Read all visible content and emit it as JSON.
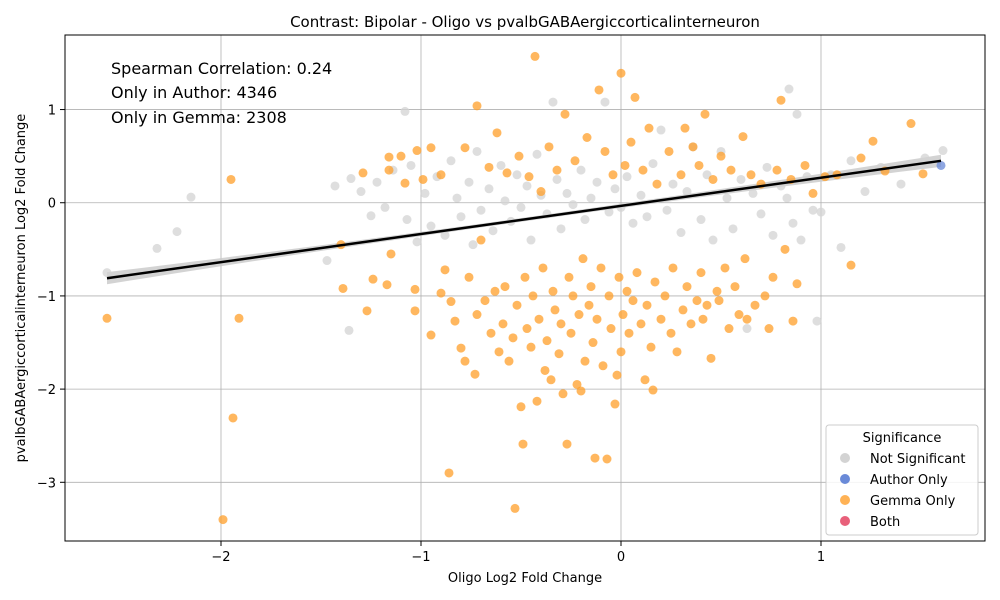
{
  "chart_data": {
    "type": "scatter",
    "title": "Contrast: Bipolar - Oligo vs pvalbGABAergiccorticalinterneuron",
    "xlabel": "Oligo Log2 Fold Change",
    "ylabel": "pvalbGABAergiccorticalinterneuron Log2 Fold Change",
    "xlim": [
      -2.78,
      1.82
    ],
    "ylim": [
      -3.63,
      1.8
    ],
    "xticks": [
      -2,
      -1,
      0,
      1
    ],
    "yticks": [
      -3,
      -2,
      -1,
      0,
      1
    ],
    "xtick_labels": [
      "−2",
      "−1",
      "0",
      "1"
    ],
    "ytick_labels": [
      "−3",
      "−2",
      "−1",
      "0",
      "1"
    ],
    "grid": true,
    "annotations": [
      "Spearman Correlation: 0.24",
      "Only in Author: 4346",
      "Only in Gemma: 2308"
    ],
    "legend": {
      "title": "Significance",
      "placement": "bottom-right",
      "entries": [
        {
          "label": "Not Significant",
          "color": "#d3d3d3"
        },
        {
          "label": "Author Only",
          "color": "#6a8ad8"
        },
        {
          "label": "Gemma Only",
          "color": "#ff9f2a"
        },
        {
          "label": "Both",
          "color": "#e8607a"
        }
      ]
    },
    "regression": {
      "x": [
        -2.57,
        1.6
      ],
      "y": [
        -0.81,
        0.45
      ],
      "color": "#000000"
    },
    "series": [
      {
        "name": "Not Significant",
        "color": "#d3d3d3",
        "points": [
          [
            -2.57,
            -0.75
          ],
          [
            -2.32,
            -0.49
          ],
          [
            -2.22,
            -0.31
          ],
          [
            -2.15,
            0.06
          ],
          [
            -1.47,
            -0.62
          ],
          [
            -1.43,
            0.18
          ],
          [
            -1.36,
            -1.37
          ],
          [
            -1.35,
            0.26
          ],
          [
            -1.3,
            0.12
          ],
          [
            -1.25,
            -0.14
          ],
          [
            -1.22,
            0.22
          ],
          [
            -1.18,
            -0.05
          ],
          [
            -1.14,
            0.35
          ],
          [
            -1.08,
            0.98
          ],
          [
            -1.07,
            -0.18
          ],
          [
            -1.05,
            0.4
          ],
          [
            -1.02,
            -0.42
          ],
          [
            -0.98,
            0.1
          ],
          [
            -0.95,
            -0.25
          ],
          [
            -0.92,
            0.28
          ],
          [
            -0.88,
            -0.35
          ],
          [
            -0.85,
            0.45
          ],
          [
            -0.82,
            0.05
          ],
          [
            -0.8,
            -0.15
          ],
          [
            -0.76,
            0.22
          ],
          [
            -0.74,
            -0.45
          ],
          [
            -0.72,
            0.55
          ],
          [
            -0.7,
            -0.08
          ],
          [
            -0.66,
            0.15
          ],
          [
            -0.64,
            -0.3
          ],
          [
            -0.6,
            0.4
          ],
          [
            -0.58,
            0.02
          ],
          [
            -0.55,
            -0.2
          ],
          [
            -0.52,
            0.3
          ],
          [
            -0.5,
            -0.05
          ],
          [
            -0.47,
            0.18
          ],
          [
            -0.45,
            -0.4
          ],
          [
            -0.42,
            0.52
          ],
          [
            -0.4,
            0.08
          ],
          [
            -0.37,
            -0.12
          ],
          [
            -0.34,
            1.08
          ],
          [
            -0.32,
            0.25
          ],
          [
            -0.3,
            -0.28
          ],
          [
            -0.27,
            0.1
          ],
          [
            -0.24,
            -0.02
          ],
          [
            -0.2,
            0.35
          ],
          [
            -0.18,
            -0.18
          ],
          [
            -0.15,
            0.05
          ],
          [
            -0.12,
            0.22
          ],
          [
            -0.08,
            1.08
          ],
          [
            -0.06,
            -0.1
          ],
          [
            -0.03,
            0.15
          ],
          [
            0.0,
            -0.05
          ],
          [
            0.03,
            0.28
          ],
          [
            0.06,
            -0.22
          ],
          [
            0.1,
            0.08
          ],
          [
            0.13,
            -0.15
          ],
          [
            0.16,
            0.42
          ],
          [
            0.2,
            0.78
          ],
          [
            0.23,
            -0.08
          ],
          [
            0.26,
            0.2
          ],
          [
            0.3,
            -0.32
          ],
          [
            0.33,
            0.12
          ],
          [
            0.36,
            0.6
          ],
          [
            0.4,
            -0.18
          ],
          [
            0.43,
            0.3
          ],
          [
            0.46,
            -0.4
          ],
          [
            0.5,
            0.55
          ],
          [
            0.53,
            0.05
          ],
          [
            0.56,
            -0.28
          ],
          [
            0.6,
            0.25
          ],
          [
            0.63,
            -1.35
          ],
          [
            0.66,
            0.1
          ],
          [
            0.7,
            -0.12
          ],
          [
            0.73,
            0.38
          ],
          [
            0.76,
            -0.35
          ],
          [
            0.8,
            0.18
          ],
          [
            0.83,
            0.05
          ],
          [
            0.84,
            1.22
          ],
          [
            0.86,
            -0.22
          ],
          [
            0.88,
            0.95
          ],
          [
            0.9,
            -0.4
          ],
          [
            0.93,
            0.28
          ],
          [
            0.96,
            -0.08
          ],
          [
            0.98,
            -1.27
          ],
          [
            1.0,
            -0.1
          ],
          [
            1.05,
            0.3
          ],
          [
            1.1,
            -0.48
          ],
          [
            1.15,
            0.45
          ],
          [
            1.22,
            0.12
          ],
          [
            1.3,
            0.38
          ],
          [
            1.4,
            0.2
          ],
          [
            1.52,
            0.48
          ],
          [
            1.61,
            0.56
          ]
        ]
      },
      {
        "name": "Author Only",
        "color": "#6a8ad8",
        "points": [
          [
            1.6,
            0.4
          ]
        ]
      },
      {
        "name": "Gemma Only",
        "color": "#ff9f2a",
        "points": [
          [
            -2.57,
            -1.24
          ],
          [
            -1.99,
            -3.4
          ],
          [
            -1.95,
            0.25
          ],
          [
            -1.94,
            -2.31
          ],
          [
            -1.91,
            -1.24
          ],
          [
            -1.39,
            -0.92
          ],
          [
            -1.4,
            -0.45
          ],
          [
            -1.29,
            0.32
          ],
          [
            -1.27,
            -1.16
          ],
          [
            -1.24,
            -0.82
          ],
          [
            -1.17,
            -0.88
          ],
          [
            -1.16,
            0.49
          ],
          [
            -1.16,
            0.35
          ],
          [
            -1.15,
            -0.55
          ],
          [
            -1.1,
            0.5
          ],
          [
            -1.08,
            0.21
          ],
          [
            -1.03,
            -0.93
          ],
          [
            -1.03,
            -1.16
          ],
          [
            -1.02,
            0.56
          ],
          [
            -0.99,
            0.25
          ],
          [
            -0.95,
            -1.42
          ],
          [
            -0.95,
            0.59
          ],
          [
            -0.9,
            -0.97
          ],
          [
            -0.9,
            0.3
          ],
          [
            -0.88,
            -0.72
          ],
          [
            -0.86,
            -2.9
          ],
          [
            -0.85,
            -1.06
          ],
          [
            -0.83,
            -1.27
          ],
          [
            -0.8,
            -1.56
          ],
          [
            -0.78,
            0.59
          ],
          [
            -0.78,
            -1.7
          ],
          [
            -0.76,
            -0.8
          ],
          [
            -0.73,
            -1.84
          ],
          [
            -0.72,
            -1.2
          ],
          [
            -0.72,
            1.04
          ],
          [
            -0.7,
            -0.4
          ],
          [
            -0.68,
            -1.05
          ],
          [
            -0.66,
            0.38
          ],
          [
            -0.65,
            -1.4
          ],
          [
            -0.63,
            -0.95
          ],
          [
            -0.62,
            0.75
          ],
          [
            -0.61,
            -1.6
          ],
          [
            -0.59,
            -1.3
          ],
          [
            -0.58,
            -0.9
          ],
          [
            -0.57,
            0.32
          ],
          [
            -0.56,
            -1.7
          ],
          [
            -0.54,
            -1.45
          ],
          [
            -0.53,
            -3.28
          ],
          [
            -0.52,
            -1.1
          ],
          [
            -0.51,
            0.5
          ],
          [
            -0.5,
            -2.19
          ],
          [
            -0.49,
            -2.59
          ],
          [
            -0.48,
            -0.8
          ],
          [
            -0.47,
            -1.35
          ],
          [
            -0.46,
            0.28
          ],
          [
            -0.45,
            -1.55
          ],
          [
            -0.44,
            -1.0
          ],
          [
            -0.43,
            1.57
          ],
          [
            -0.42,
            -2.13
          ],
          [
            -0.41,
            -1.25
          ],
          [
            -0.4,
            0.12
          ],
          [
            -0.39,
            -0.7
          ],
          [
            -0.38,
            -1.8
          ],
          [
            -0.37,
            -1.48
          ],
          [
            -0.36,
            0.6
          ],
          [
            -0.35,
            -1.9
          ],
          [
            -0.34,
            -0.95
          ],
          [
            -0.33,
            -1.15
          ],
          [
            -0.32,
            0.35
          ],
          [
            -0.31,
            -1.62
          ],
          [
            -0.3,
            -1.3
          ],
          [
            -0.29,
            -2.05
          ],
          [
            -0.28,
            0.95
          ],
          [
            -0.27,
            -2.59
          ],
          [
            -0.26,
            -0.8
          ],
          [
            -0.25,
            -1.4
          ],
          [
            -0.24,
            -1.0
          ],
          [
            -0.23,
            0.45
          ],
          [
            -0.22,
            -1.95
          ],
          [
            -0.21,
            -1.2
          ],
          [
            -0.2,
            -2.02
          ],
          [
            -0.19,
            -0.6
          ],
          [
            -0.18,
            -1.7
          ],
          [
            -0.17,
            0.7
          ],
          [
            -0.16,
            -1.1
          ],
          [
            -0.15,
            -0.9
          ],
          [
            -0.14,
            -1.5
          ],
          [
            -0.13,
            -2.74
          ],
          [
            -0.12,
            -1.25
          ],
          [
            -0.11,
            1.21
          ],
          [
            -0.1,
            -0.7
          ],
          [
            -0.09,
            -1.75
          ],
          [
            -0.08,
            0.55
          ],
          [
            -0.07,
            -2.75
          ],
          [
            -0.06,
            -1.0
          ],
          [
            -0.05,
            -1.35
          ],
          [
            -0.04,
            0.3
          ],
          [
            -0.03,
            -2.16
          ],
          [
            -0.02,
            -1.85
          ],
          [
            -0.01,
            -0.8
          ],
          [
            0.0,
            1.39
          ],
          [
            0.0,
            -1.6
          ],
          [
            0.01,
            -1.2
          ],
          [
            0.02,
            0.4
          ],
          [
            0.03,
            -0.95
          ],
          [
            0.04,
            -1.4
          ],
          [
            0.05,
            0.65
          ],
          [
            0.06,
            -1.05
          ],
          [
            0.07,
            1.13
          ],
          [
            0.08,
            -0.75
          ],
          [
            0.1,
            -1.3
          ],
          [
            0.11,
            0.35
          ],
          [
            0.12,
            -1.9
          ],
          [
            0.13,
            -1.1
          ],
          [
            0.14,
            0.8
          ],
          [
            0.15,
            -1.55
          ],
          [
            0.16,
            -2.01
          ],
          [
            0.17,
            -0.85
          ],
          [
            0.18,
            0.2
          ],
          [
            0.2,
            -1.25
          ],
          [
            0.22,
            -1.0
          ],
          [
            0.24,
            0.55
          ],
          [
            0.25,
            -1.4
          ],
          [
            0.26,
            -0.7
          ],
          [
            0.28,
            -1.6
          ],
          [
            0.3,
            0.3
          ],
          [
            0.31,
            -1.15
          ],
          [
            0.32,
            0.8
          ],
          [
            0.33,
            -0.9
          ],
          [
            0.35,
            -1.3
          ],
          [
            0.36,
            0.6
          ],
          [
            0.38,
            -1.05
          ],
          [
            0.39,
            0.4
          ],
          [
            0.4,
            -0.75
          ],
          [
            0.41,
            -1.25
          ],
          [
            0.42,
            0.95
          ],
          [
            0.43,
            -1.1
          ],
          [
            0.45,
            -1.67
          ],
          [
            0.46,
            0.25
          ],
          [
            0.48,
            -0.95
          ],
          [
            0.49,
            -1.05
          ],
          [
            0.5,
            0.5
          ],
          [
            0.52,
            -0.7
          ],
          [
            0.54,
            -1.35
          ],
          [
            0.55,
            0.35
          ],
          [
            0.57,
            -0.9
          ],
          [
            0.59,
            -1.2
          ],
          [
            0.61,
            0.71
          ],
          [
            0.62,
            -0.6
          ],
          [
            0.63,
            -1.25
          ],
          [
            0.65,
            0.3
          ],
          [
            0.67,
            -1.1
          ],
          [
            0.7,
            0.2
          ],
          [
            0.72,
            -1.0
          ],
          [
            0.74,
            -1.35
          ],
          [
            0.76,
            -0.8
          ],
          [
            0.78,
            0.35
          ],
          [
            0.8,
            1.1
          ],
          [
            0.82,
            -0.5
          ],
          [
            0.85,
            0.25
          ],
          [
            0.86,
            -1.27
          ],
          [
            0.88,
            -0.87
          ],
          [
            0.92,
            0.4
          ],
          [
            0.96,
            0.1
          ],
          [
            1.02,
            0.28
          ],
          [
            1.08,
            0.3
          ],
          [
            1.15,
            -0.67
          ],
          [
            1.2,
            0.48
          ],
          [
            1.26,
            0.66
          ],
          [
            1.32,
            0.34
          ],
          [
            1.45,
            0.85
          ],
          [
            1.51,
            0.31
          ]
        ]
      },
      {
        "name": "Both",
        "color": "#e8607a",
        "points": []
      }
    ]
  }
}
